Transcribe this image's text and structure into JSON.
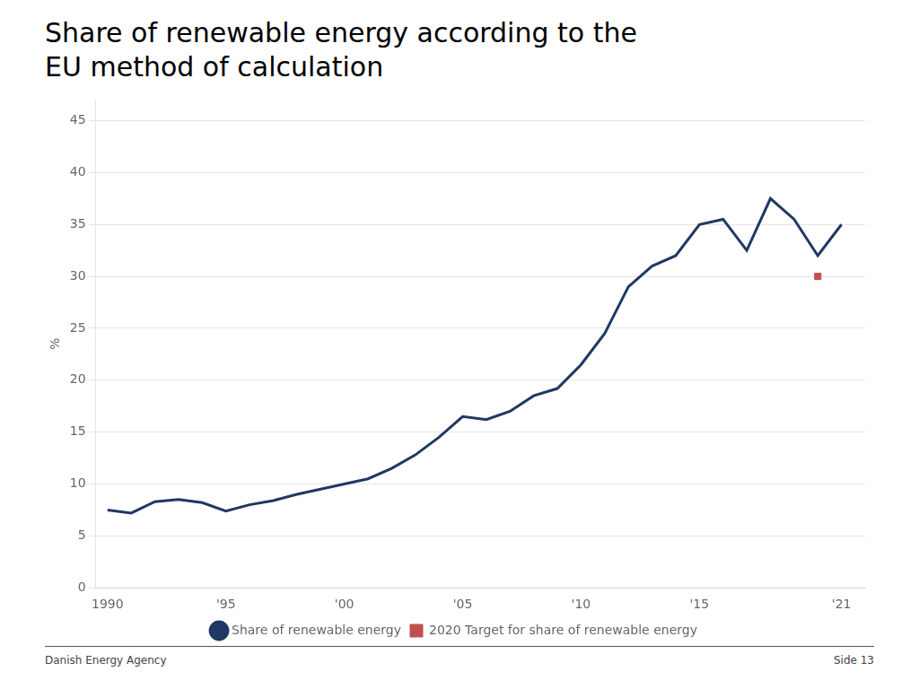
{
  "chart_data": {
    "type": "line",
    "title": "Share of renewable energy according to the EU method of calculation",
    "ylabel": "%",
    "annotations": [
      "Danish Energy Agency",
      "Side 13"
    ],
    "x": [
      1990,
      1991,
      1992,
      1993,
      1994,
      1995,
      1996,
      1997,
      1998,
      1999,
      2000,
      2001,
      2002,
      2003,
      2004,
      2005,
      2006,
      2007,
      2008,
      2009,
      2010,
      2011,
      2012,
      2013,
      2014,
      2015,
      2016,
      2017,
      2018,
      2019,
      2020,
      2021
    ],
    "series": [
      {
        "name": "Share of renewable energy",
        "color": "#1F3864",
        "type": "line",
        "values": [
          7.5,
          7.2,
          8.3,
          8.5,
          8.2,
          7.4,
          8.0,
          8.4,
          9.0,
          9.5,
          10.0,
          10.5,
          11.5,
          12.8,
          14.5,
          16.5,
          16.2,
          17.0,
          18.5,
          19.2,
          21.5,
          24.5,
          29.0,
          31.0,
          32.0,
          35.0,
          35.5,
          32.5,
          37.5,
          35.5,
          32.0,
          35.0
        ]
      },
      {
        "name": "2020 Target for share of renewable energy",
        "color": "#C0504D",
        "type": "scatter",
        "marker": "square",
        "x": [
          2020
        ],
        "values": [
          30.0
        ]
      }
    ],
    "xlim": [
      1989.5,
      2022.0
    ],
    "xticks": [
      1990,
      {
        "value": 1995,
        "label": "'95"
      },
      {
        "value": 2000,
        "label": "'00"
      },
      {
        "value": 2005,
        "label": "'05"
      },
      {
        "value": 2010,
        "label": "'10"
      },
      {
        "value": 2015,
        "label": "'15"
      },
      {
        "value": 2021,
        "label": "'21"
      }
    ],
    "ylim": [
      0,
      47
    ],
    "yticks": [
      0,
      5,
      10,
      15,
      20,
      25,
      30,
      35,
      40,
      45
    ],
    "grid": "y",
    "legend": "bottom"
  }
}
